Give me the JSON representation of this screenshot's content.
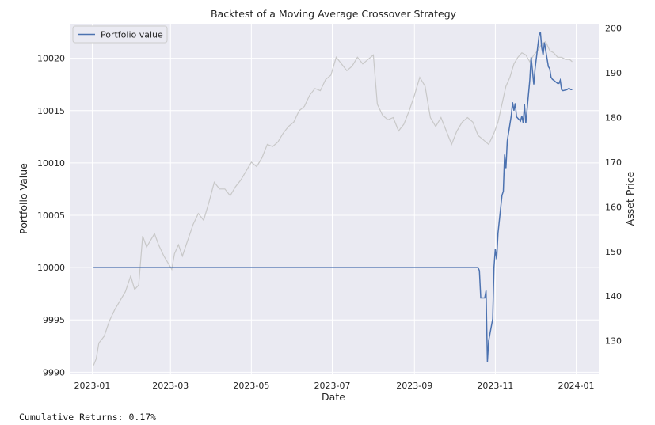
{
  "chart_data": {
    "type": "line",
    "title": "Backtest of a Moving Average Crossover Strategy",
    "xlabel": "Date",
    "ylabel_left": "Portfolio Value",
    "ylabel_right": "Asset Price",
    "x_ticks": [
      "2023-01",
      "2023-03",
      "2023-05",
      "2023-07",
      "2023-09",
      "2023-11",
      "2024-01"
    ],
    "y_left_ticks": [
      9990,
      9995,
      10000,
      10005,
      10010,
      10015,
      10020
    ],
    "y_right_ticks": [
      130,
      140,
      150,
      160,
      170,
      180,
      190,
      200
    ],
    "xlim": [
      "2022-12-15",
      "2024-01-18"
    ],
    "ylim_left": [
      9989.8,
      10023.3
    ],
    "ylim_right": [
      122.5,
      201
    ],
    "legend": {
      "placement": "top-left",
      "label": "Portfolio value"
    },
    "grid": true,
    "colors": {
      "portfolio": "#4c72b0",
      "asset": "#c8c8c8",
      "background": "#eaeaf2",
      "grid": "#ffffff"
    },
    "series": [
      {
        "name": "Portfolio value",
        "axis": "left",
        "x": [
          "2023-01-02",
          "2023-10-19",
          "2023-10-20",
          "2023-10-21",
          "2023-10-24",
          "2023-10-25",
          "2023-10-26",
          "2023-10-27",
          "2023-10-30",
          "2023-10-31",
          "2023-11-01",
          "2023-11-02",
          "2023-11-03",
          "2023-11-06",
          "2023-11-07",
          "2023-11-08",
          "2023-11-09",
          "2023-11-10",
          "2023-11-13",
          "2023-11-14",
          "2023-11-15",
          "2023-11-16",
          "2023-11-17",
          "2023-11-20",
          "2023-11-21",
          "2023-11-22",
          "2023-11-23",
          "2023-11-24",
          "2023-11-27",
          "2023-11-28",
          "2023-11-29",
          "2023-11-30",
          "2023-12-01",
          "2023-12-04",
          "2023-12-05",
          "2023-12-06",
          "2023-12-07",
          "2023-12-08",
          "2023-12-11",
          "2023-12-12",
          "2023-12-13",
          "2023-12-14",
          "2023-12-15",
          "2023-12-18",
          "2023-12-19",
          "2023-12-20",
          "2023-12-21",
          "2023-12-22",
          "2023-12-25",
          "2023-12-26",
          "2023-12-27",
          "2023-12-28",
          "2023-12-29"
        ],
        "values": [
          10000,
          10000,
          9999.7,
          9997.1,
          9997.1,
          9997.8,
          9991.0,
          9993.0,
          9995.1,
          10000,
          10001.8,
          10000.8,
          10003.3,
          10006.9,
          10007.3,
          10010.8,
          10009.5,
          10012.1,
          10014.5,
          10015.8,
          10015.0,
          10015.7,
          10014.4,
          10014.0,
          10014.5,
          10013.8,
          10015.6,
          10013.8,
          10017.9,
          10020.1,
          10018.8,
          10017.5,
          10019.0,
          10022.2,
          10022.5,
          10021.0,
          10020.3,
          10021.5,
          10019.2,
          10019.0,
          10018.2,
          10018.0,
          10017.9,
          10017.6,
          10017.6,
          10017.9,
          10017.0,
          10016.9,
          10017.0,
          10017.1,
          10017.1,
          10017.0,
          10017.0
        ]
      },
      {
        "name": "",
        "axis": "right",
        "x": [
          "2023-01-02",
          "2023-01-04",
          "2023-01-06",
          "2023-01-10",
          "2023-01-14",
          "2023-01-18",
          "2023-01-22",
          "2023-01-26",
          "2023-01-30",
          "2023-02-02",
          "2023-02-05",
          "2023-02-08",
          "2023-02-11",
          "2023-02-14",
          "2023-02-17",
          "2023-02-20",
          "2023-02-24",
          "2023-02-28",
          "2023-03-02",
          "2023-03-04",
          "2023-03-07",
          "2023-03-10",
          "2023-03-14",
          "2023-03-18",
          "2023-03-22",
          "2023-03-26",
          "2023-03-30",
          "2023-04-03",
          "2023-04-07",
          "2023-04-11",
          "2023-04-15",
          "2023-04-19",
          "2023-04-23",
          "2023-04-27",
          "2023-05-01",
          "2023-05-05",
          "2023-05-09",
          "2023-05-13",
          "2023-05-17",
          "2023-05-21",
          "2023-05-25",
          "2023-05-29",
          "2023-06-02",
          "2023-06-06",
          "2023-06-10",
          "2023-06-14",
          "2023-06-18",
          "2023-06-22",
          "2023-06-26",
          "2023-06-30",
          "2023-07-04",
          "2023-07-08",
          "2023-07-12",
          "2023-07-16",
          "2023-07-20",
          "2023-07-24",
          "2023-07-28",
          "2023-08-01",
          "2023-08-04",
          "2023-08-08",
          "2023-08-12",
          "2023-08-16",
          "2023-08-20",
          "2023-08-24",
          "2023-08-28",
          "2023-09-01",
          "2023-09-05",
          "2023-09-09",
          "2023-09-13",
          "2023-09-17",
          "2023-09-21",
          "2023-09-25",
          "2023-09-29",
          "2023-10-03",
          "2023-10-07",
          "2023-10-11",
          "2023-10-15",
          "2023-10-19",
          "2023-10-23",
          "2023-10-27",
          "2023-10-31",
          "2023-11-03",
          "2023-11-06",
          "2023-11-09",
          "2023-11-12",
          "2023-11-15",
          "2023-11-18",
          "2023-11-21",
          "2023-11-24",
          "2023-11-27",
          "2023-11-30",
          "2023-12-03",
          "2023-12-06",
          "2023-12-09",
          "2023-12-12",
          "2023-12-15",
          "2023-12-18",
          "2023-12-21",
          "2023-12-24",
          "2023-12-27",
          "2023-12-29"
        ],
        "values": [
          124.5,
          126,
          129.5,
          131,
          134.5,
          137,
          139,
          141,
          144.5,
          141.5,
          142.5,
          153.5,
          151,
          152.5,
          154,
          151.5,
          149,
          147,
          146,
          149.5,
          151.5,
          149,
          152.5,
          156,
          158.5,
          157,
          161,
          165.5,
          164,
          164,
          162.5,
          164.5,
          166,
          168,
          170,
          169,
          171,
          174,
          173.5,
          174.5,
          176.5,
          178,
          179,
          181.5,
          182.5,
          185,
          186.5,
          186,
          188.5,
          189.5,
          193.5,
          192,
          190.5,
          191.5,
          193.5,
          192,
          193,
          194,
          183,
          180.5,
          179.5,
          180,
          177,
          178.5,
          181.5,
          185,
          189,
          187,
          180,
          178,
          180,
          177,
          174,
          177,
          179,
          180,
          179,
          176,
          175,
          174,
          176.5,
          179,
          183,
          187,
          189,
          192,
          193.5,
          194.5,
          194,
          192.5,
          194,
          195,
          196.5,
          197,
          195,
          194.5,
          193.5,
          193.5,
          193,
          193,
          192.5
        ]
      }
    ]
  },
  "footer": "Cumulative Returns: 0.17%"
}
